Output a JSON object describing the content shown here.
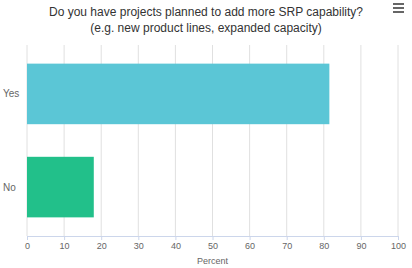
{
  "chart_data": {
    "type": "bar",
    "orientation": "horizontal",
    "title": "Do you have projects planned to add more SRP capability?",
    "subtitle": "(e.g. new product lines, expanded capacity)",
    "xlabel": "Percent",
    "categories": [
      "Yes",
      "No"
    ],
    "values": [
      81.5,
      18
    ],
    "colors": [
      "#5bc6d6",
      "#22c08a"
    ],
    "xlim": [
      0,
      100
    ],
    "xticks": [
      0,
      10,
      20,
      30,
      40,
      50,
      60,
      70,
      80,
      90,
      100
    ],
    "grid": true
  }
}
